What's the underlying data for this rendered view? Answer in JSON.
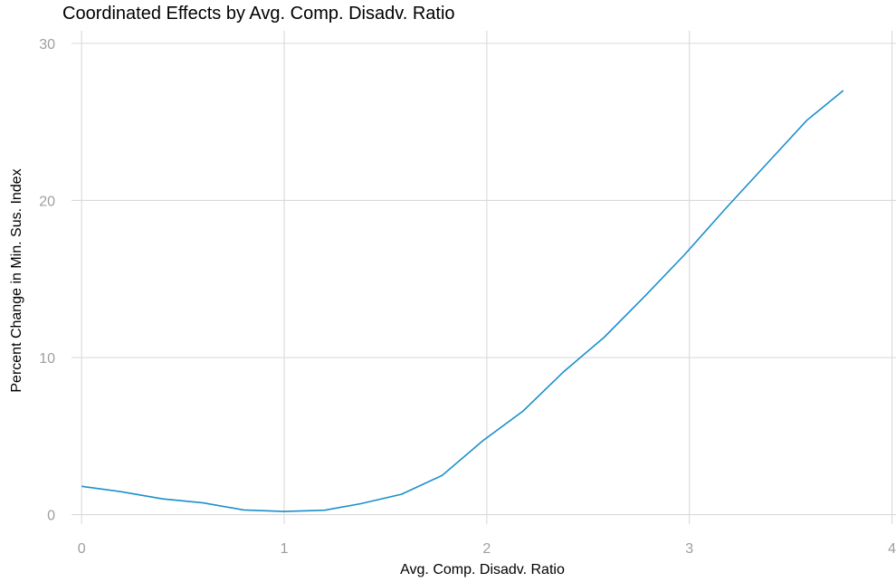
{
  "chart_data": {
    "type": "line",
    "title": "Coordinated Effects by Avg. Comp. Disadv. Ratio",
    "xlabel": "Avg. Comp. Disadv. Ratio",
    "ylabel": "Percent Change in Min. Sus. Index",
    "xlim": [
      -0.05,
      4.02
    ],
    "ylim": [
      -0.6,
      30.8
    ],
    "x_ticks": [
      0,
      1,
      2,
      3,
      4
    ],
    "y_ticks": [
      0,
      10,
      20,
      30
    ],
    "x_tick_labels": [
      "0",
      "1",
      "2",
      "3",
      "4"
    ],
    "y_tick_labels": [
      "0",
      "10",
      "20",
      "30"
    ],
    "grid": true,
    "legend": "none",
    "series": [
      {
        "color": "#1a8fcc",
        "x": [
          0,
          0.2,
          0.4,
          0.6,
          0.8,
          1.0,
          1.2,
          1.38,
          1.58,
          1.78,
          1.98,
          2.18,
          2.38,
          2.58,
          2.78,
          2.98,
          3.18,
          3.38,
          3.58,
          3.76
        ],
        "y": [
          1.8,
          1.45,
          1.0,
          0.75,
          0.3,
          0.2,
          0.28,
          0.7,
          1.3,
          2.5,
          4.7,
          6.6,
          9.1,
          11.3,
          13.9,
          16.6,
          19.5,
          22.3,
          25.1,
          27.0
        ]
      }
    ]
  }
}
